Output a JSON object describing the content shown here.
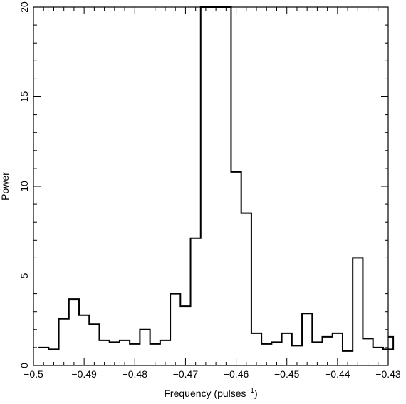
{
  "chart_data": {
    "type": "line",
    "style": "step histogram",
    "xlabel": "Frequency (pulses",
    "xlabel_superscript": "−1",
    "xlabel_close": ")",
    "ylabel": "Power",
    "xlim": [
      -0.5,
      -0.43
    ],
    "ylim": [
      0,
      20
    ],
    "x_ticks": [
      -0.5,
      -0.49,
      -0.48,
      -0.47,
      -0.46,
      -0.45,
      -0.44,
      -0.43
    ],
    "x_tick_labels": [
      "−0.5",
      "−0.49",
      "−0.48",
      "−0.47",
      "−0.46",
      "−0.45",
      "−0.44",
      "−0.43"
    ],
    "y_ticks": [
      0,
      5,
      10,
      15,
      20
    ],
    "y_tick_labels": [
      "0",
      "5",
      "10",
      "15",
      "20"
    ],
    "bin_width": 0.002,
    "bins_start": [
      -0.499,
      -0.497,
      -0.495,
      -0.493,
      -0.491,
      -0.489,
      -0.487,
      -0.485,
      -0.483,
      -0.481,
      -0.479,
      -0.477,
      -0.475,
      -0.473,
      -0.471,
      -0.469,
      -0.467,
      -0.465,
      -0.463,
      -0.461,
      -0.459,
      -0.457,
      -0.455,
      -0.453,
      -0.451,
      -0.449,
      -0.447,
      -0.445,
      -0.443,
      -0.441,
      -0.439,
      -0.437,
      -0.435,
      -0.433,
      -0.431
    ],
    "values": [
      1.0,
      0.9,
      2.6,
      3.7,
      2.8,
      2.3,
      1.4,
      1.3,
      1.4,
      1.2,
      2.0,
      1.2,
      1.4,
      4.0,
      3.3,
      7.1,
      20.0,
      20.0,
      20.0,
      10.8,
      8.5,
      1.8,
      1.2,
      1.3,
      1.8,
      1.1,
      2.9,
      1.3,
      1.6,
      1.8,
      0.8,
      6.0,
      1.5,
      1.0,
      0.9
    ],
    "last_bin_end": -0.4295,
    "last_bin_value": 1.6,
    "grid": false,
    "color": "#000000"
  }
}
